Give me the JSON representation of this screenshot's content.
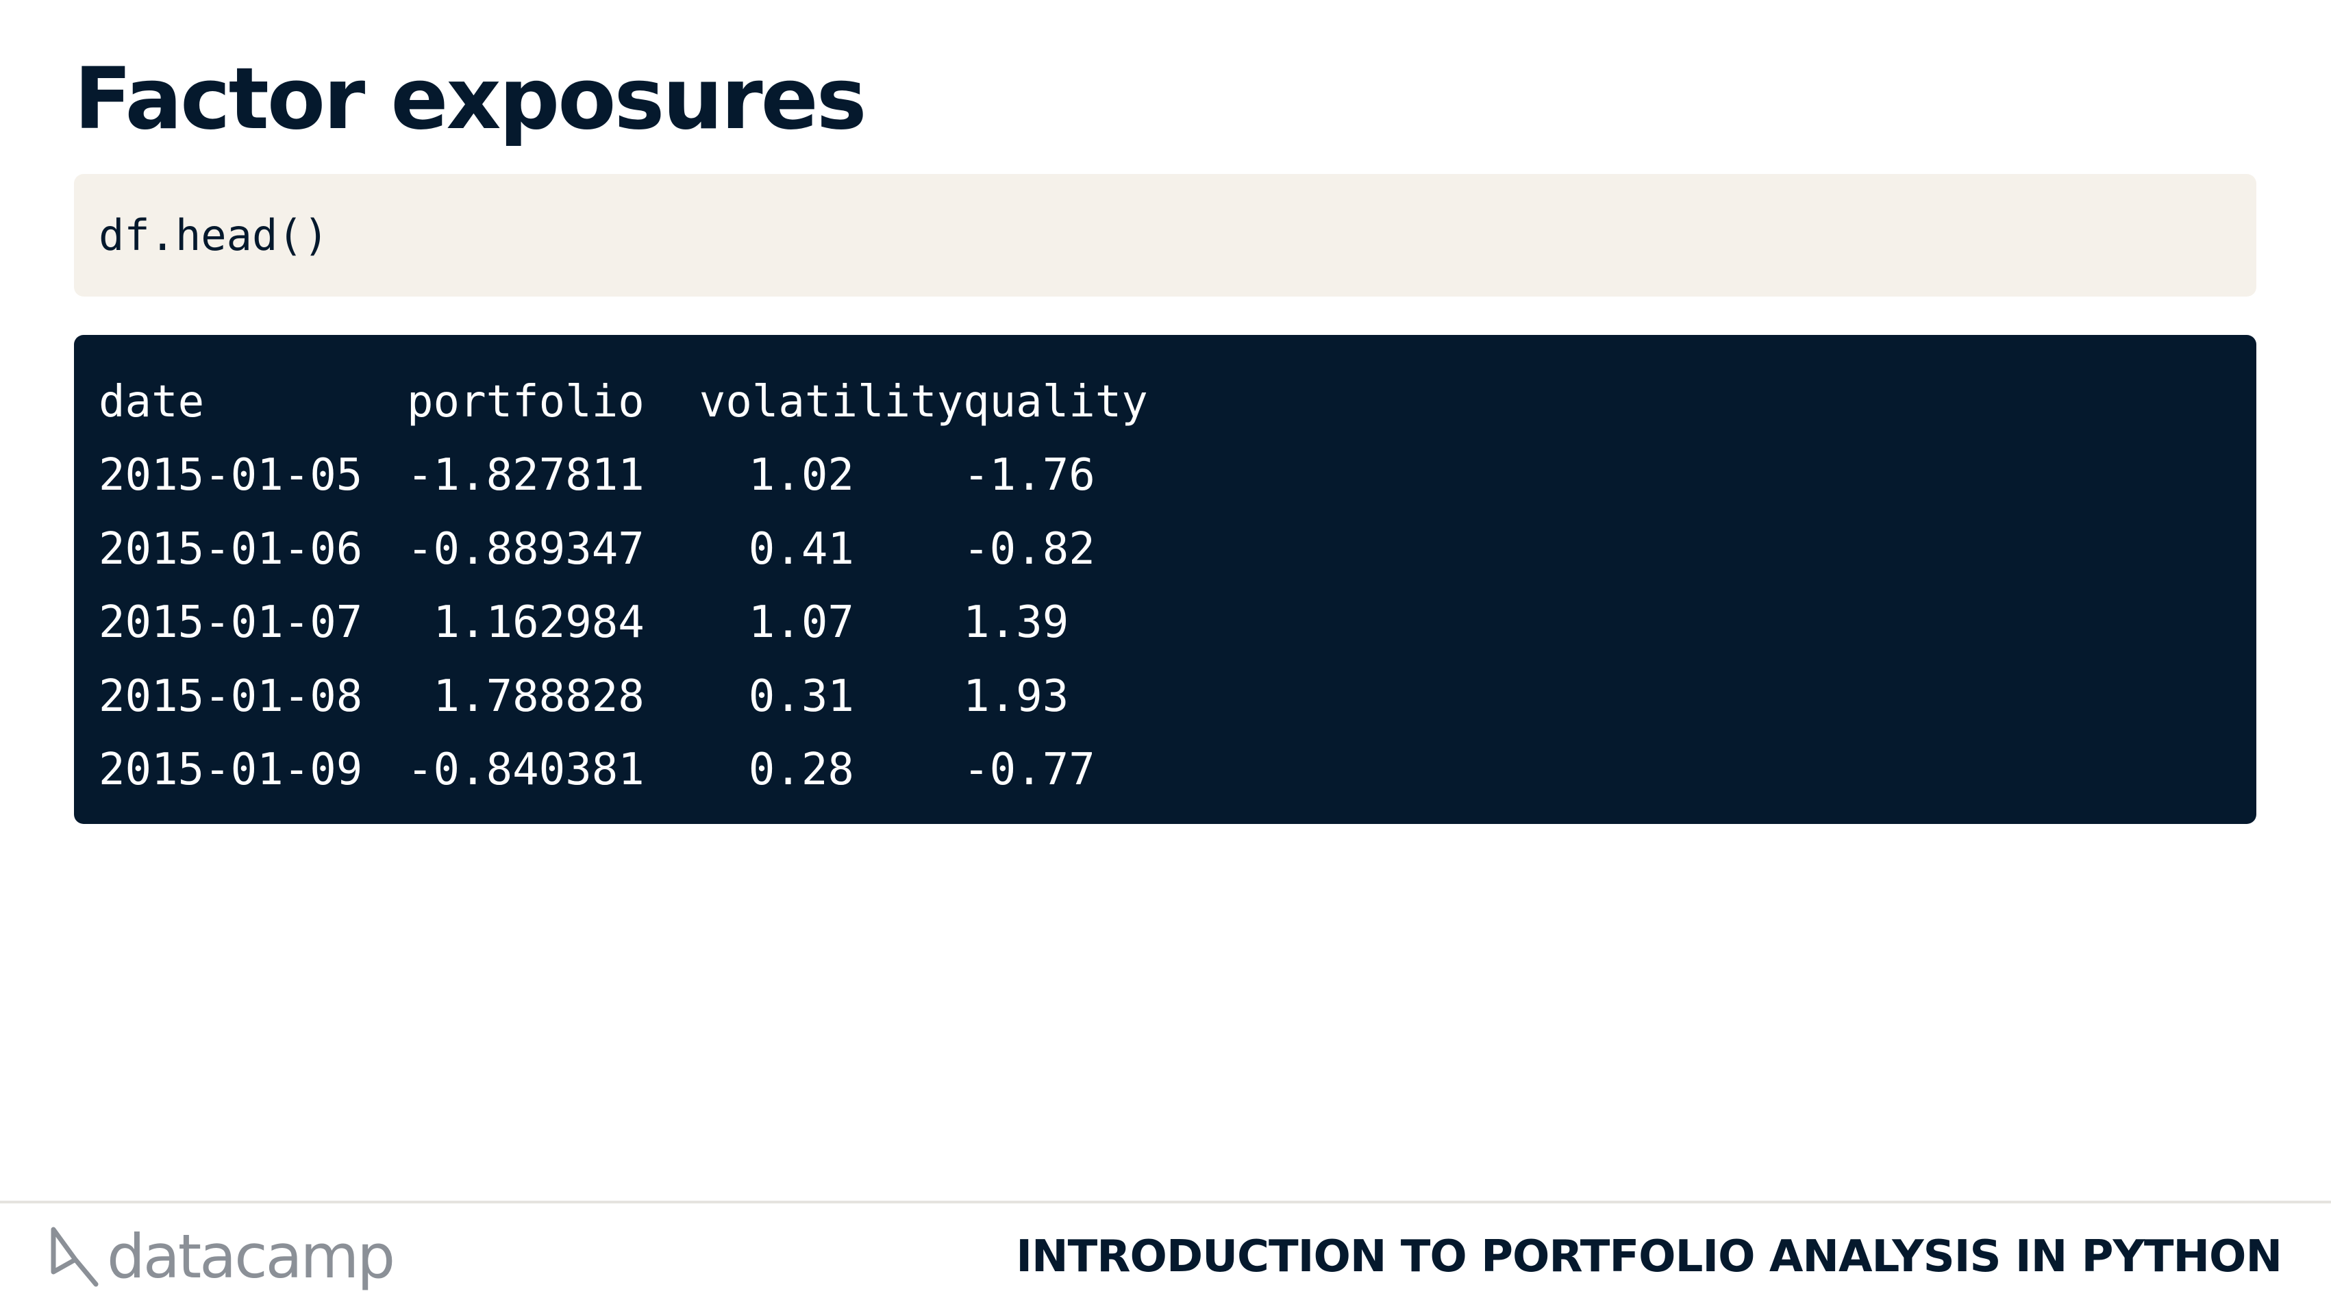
{
  "slide": {
    "title": "Factor exposures"
  },
  "code": {
    "text": "df.head()"
  },
  "output": {
    "columns": [
      "date",
      "portfolio",
      "volatility",
      "quality"
    ],
    "rows": [
      [
        "2015-01-05",
        "-1.827811",
        "1.02",
        "-1.76"
      ],
      [
        "2015-01-06",
        "-0.889347",
        "0.41",
        "-0.82"
      ],
      [
        "2015-01-07",
        "1.162984",
        "1.07",
        "1.39"
      ],
      [
        "2015-01-08",
        "1.788828",
        "0.31",
        "1.93"
      ],
      [
        "2015-01-09",
        "-0.840381",
        "0.28",
        "-0.77"
      ]
    ]
  },
  "footer": {
    "logo_text": "datacamp",
    "course_title": "INTRODUCTION TO PORTFOLIO ANALYSIS IN PYTHON"
  },
  "colors": {
    "title": "#05192d",
    "code_bg": "#f5f1ea",
    "output_bg": "#05192d",
    "logo_gray": "#8b9097"
  }
}
